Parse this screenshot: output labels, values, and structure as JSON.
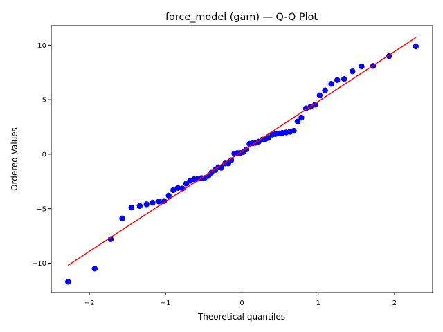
{
  "chart_data": {
    "type": "scatter",
    "title": "force_model (gam) — Q-Q Plot",
    "xlabel": "Theoretical quantiles",
    "ylabel": "Ordered Values",
    "xlim": [
      -2.5,
      2.5
    ],
    "ylim": [
      -12.7,
      11.8
    ],
    "xticks": [
      -2,
      -1,
      0,
      1,
      2
    ],
    "xtick_labels": [
      "−2",
      "−1",
      "0",
      "1",
      "2"
    ],
    "yticks": [
      -10,
      -5,
      0,
      5,
      10
    ],
    "ytick_labels": [
      "−10",
      "−5",
      "0",
      "5",
      "10"
    ],
    "grid": false,
    "point_color": "#0000ff",
    "line_color": "#ff0000",
    "points": {
      "x": [
        -2.28,
        -1.93,
        -1.72,
        -1.57,
        -1.45,
        -1.34,
        -1.25,
        -1.17,
        -1.09,
        -1.02,
        -0.96,
        -0.9,
        -0.84,
        -0.78,
        -0.73,
        -0.68,
        -0.63,
        -0.58,
        -0.53,
        -0.49,
        -0.44,
        -0.4,
        -0.35,
        -0.31,
        -0.27,
        -0.22,
        -0.18,
        -0.14,
        -0.1,
        -0.06,
        -0.02,
        0.02,
        0.06,
        0.1,
        0.14,
        0.18,
        0.22,
        0.27,
        0.31,
        0.35,
        0.4,
        0.44,
        0.49,
        0.53,
        0.58,
        0.63,
        0.68,
        0.73,
        0.78,
        0.84,
        0.9,
        0.96,
        1.02,
        1.09,
        1.17,
        1.25,
        1.34,
        1.45,
        1.57,
        1.72,
        1.93,
        2.28
      ],
      "y": [
        -11.7,
        -10.5,
        -7.8,
        -5.9,
        -4.9,
        -4.75,
        -4.6,
        -4.45,
        -4.35,
        -4.3,
        -3.8,
        -3.3,
        -3.1,
        -3.15,
        -2.7,
        -2.45,
        -2.3,
        -2.25,
        -2.2,
        -2.2,
        -2.0,
        -1.7,
        -1.45,
        -1.2,
        -1.25,
        -0.85,
        -0.85,
        -0.55,
        0.05,
        0.1,
        0.1,
        0.2,
        0.45,
        0.95,
        1.0,
        1.05,
        1.15,
        1.35,
        1.4,
        1.5,
        1.8,
        1.85,
        1.9,
        1.95,
        2.0,
        2.05,
        2.15,
        3.0,
        3.35,
        4.2,
        4.35,
        4.55,
        5.4,
        5.85,
        6.45,
        6.8,
        6.9,
        7.6,
        8.05,
        8.1,
        9.0,
        9.9
      ]
    },
    "fit_line": {
      "x": [
        -2.28,
        2.28
      ],
      "y": [
        -10.2,
        10.7
      ]
    }
  }
}
